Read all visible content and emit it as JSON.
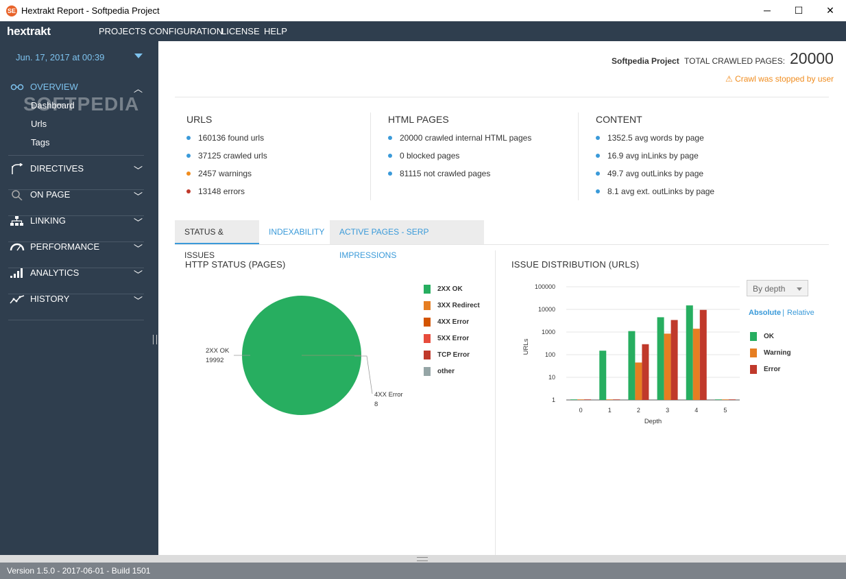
{
  "window": {
    "title": "Hextrakt Report - Softpedia Project",
    "app_icon_glyph": "SE"
  },
  "menubar": {
    "logo": "hextrakt",
    "items": [
      "PROJECTS",
      "CONFIGURATION",
      "LICENSE",
      "HELP"
    ]
  },
  "sidebar": {
    "date": "Jun. 17, 2017 at 00:39",
    "watermark": "SOFTPEDIA",
    "sections": [
      {
        "label": "OVERVIEW",
        "icon": "glasses-icon",
        "expanded": true,
        "chevron": "︿"
      },
      {
        "label": "DIRECTIVES",
        "icon": "directives-icon",
        "expanded": false,
        "chevron": "﹀"
      },
      {
        "label": "ON PAGE",
        "icon": "search-icon",
        "expanded": false,
        "chevron": "﹀"
      },
      {
        "label": "LINKING",
        "icon": "sitemap-icon",
        "expanded": false,
        "chevron": "﹀"
      },
      {
        "label": "PERFORMANCE",
        "icon": "gauge-icon",
        "expanded": false,
        "chevron": "﹀"
      },
      {
        "label": "ANALYTICS",
        "icon": "bars-icon",
        "expanded": false,
        "chevron": "﹀"
      },
      {
        "label": "HISTORY",
        "icon": "trend-line-icon",
        "expanded": false,
        "chevron": "﹀"
      }
    ],
    "overview_items": [
      "Dashboard",
      "Urls",
      "Tags"
    ]
  },
  "header": {
    "project": "Softpedia Project",
    "total_label": "TOTAL CRAWLED PAGES:",
    "total_value": "20000",
    "warning": "⚠ Crawl was stopped by user"
  },
  "stats": {
    "urls": {
      "title": "URLS",
      "items": [
        {
          "text": "160136 found urls",
          "color": "#3a9ad9"
        },
        {
          "text": "37125 crawled urls",
          "color": "#3a9ad9"
        },
        {
          "text": "2457 warnings",
          "color": "#f08c1e"
        },
        {
          "text": "13148 errors",
          "color": "#c0392b"
        }
      ]
    },
    "html": {
      "title": "HTML PAGES",
      "items": [
        {
          "text": "20000 crawled internal HTML pages",
          "color": "#3a9ad9"
        },
        {
          "text": "0 blocked pages",
          "color": "#3a9ad9"
        },
        {
          "text": "81115 not crawled pages",
          "color": "#3a9ad9"
        }
      ]
    },
    "content": {
      "title": "CONTENT",
      "items": [
        {
          "text": "1352.5 avg words by page",
          "color": "#3a9ad9"
        },
        {
          "text": "16.9 avg inLinks by page",
          "color": "#3a9ad9"
        },
        {
          "text": "49.7 avg outLinks by page",
          "color": "#3a9ad9"
        },
        {
          "text": "8.1 avg ext. outLinks by page",
          "color": "#3a9ad9"
        }
      ]
    }
  },
  "tabs": [
    "STATUS & ISSUES",
    "INDEXABILITY",
    "ACTIVE PAGES - SERP IMPRESSIONS"
  ],
  "panels": {
    "http_title": "HTTP STATUS (PAGES)",
    "issue_title": "ISSUE DISTRIBUTION (URLS)",
    "depth_dropdown": "By depth",
    "mode_absolute": "Absolute",
    "mode_separator": "|",
    "mode_relative": "Relative"
  },
  "chart_data": [
    {
      "type": "pie",
      "title": "HTTP STATUS (PAGES)",
      "slices": [
        {
          "label": "2XX OK",
          "value": 19992,
          "color": "#27ae60"
        },
        {
          "label": "4XX Error",
          "value": 8,
          "color": "#d35400"
        }
      ],
      "legend": [
        {
          "label": "2XX OK",
          "color": "#27ae60"
        },
        {
          "label": "3XX Redirect",
          "color": "#e67e22"
        },
        {
          "label": "4XX Error",
          "color": "#d35400"
        },
        {
          "label": "5XX Error",
          "color": "#e74c3c"
        },
        {
          "label": "TCP Error",
          "color": "#c0392b"
        },
        {
          "label": "other",
          "color": "#95a5a6"
        }
      ]
    },
    {
      "type": "bar",
      "title": "ISSUE DISTRIBUTION (URLS)",
      "xlabel": "Depth",
      "ylabel": "URLs",
      "yscale": "log",
      "ylim": [
        1,
        100000
      ],
      "yticks": [
        1,
        10,
        100,
        1000,
        10000,
        100000
      ],
      "categories": [
        "0",
        "1",
        "2",
        "3",
        "4",
        "5"
      ],
      "series": [
        {
          "name": "OK",
          "color": "#27ae60",
          "values": [
            1,
            150,
            1100,
            4500,
            15000,
            1
          ]
        },
        {
          "name": "Warning",
          "color": "#e67e22",
          "values": [
            1,
            1,
            45,
            850,
            1400,
            1
          ]
        },
        {
          "name": "Error",
          "color": "#c0392b",
          "values": [
            1,
            1,
            290,
            3400,
            9500,
            1
          ]
        }
      ]
    }
  ],
  "footer": {
    "version": "Version 1.5.0 - 2017-06-01 - Build 1501"
  }
}
